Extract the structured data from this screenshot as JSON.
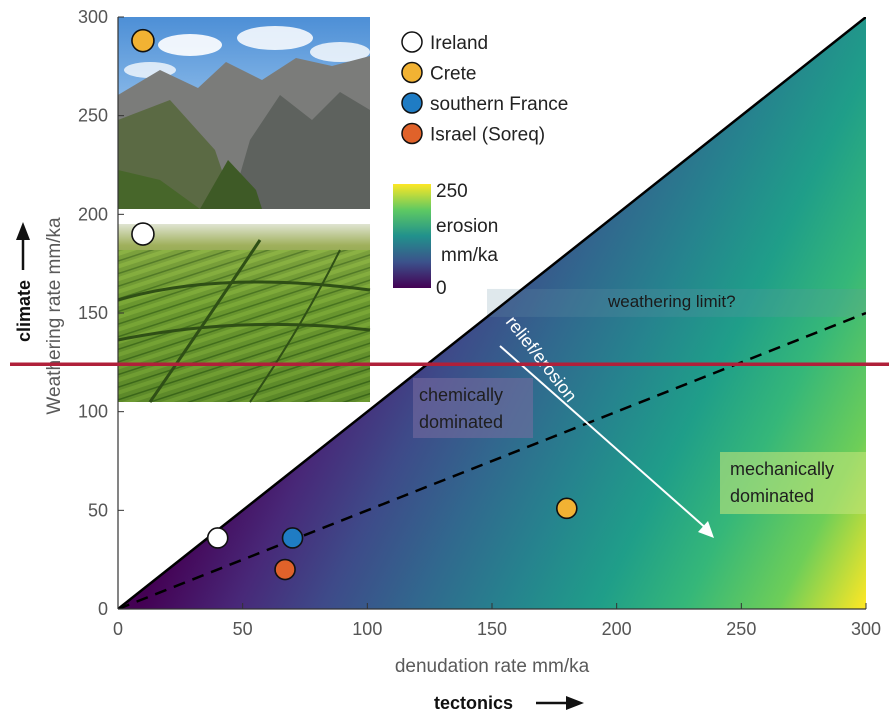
{
  "chart_data": {
    "type": "scatter",
    "xlabel": "denudation rate mm/ka",
    "ylabel": "Weathering rate mm/ka",
    "xlim": [
      0,
      300
    ],
    "ylim": [
      0,
      300
    ],
    "x_ticks": [
      0,
      50,
      100,
      150,
      200,
      250,
      300
    ],
    "y_ticks": [
      0,
      50,
      100,
      150,
      200,
      250,
      300
    ],
    "series": [
      {
        "name": "Ireland",
        "x": [
          40
        ],
        "y": [
          36
        ],
        "color": "#ffffff"
      },
      {
        "name": "Crete",
        "x": [
          180
        ],
        "y": [
          51
        ],
        "color": "#f2b233"
      },
      {
        "name": "southern France",
        "x": [
          70
        ],
        "y": [
          36
        ],
        "color": "#1f7cc4"
      },
      {
        "name": "Israel (Soreq)",
        "x": [
          67
        ],
        "y": [
          20
        ],
        "color": "#e0622a"
      }
    ],
    "legend_position": "top-center",
    "colorbar": {
      "label_line1": "erosion",
      "label_line2": "mm/ka",
      "max_label": "250",
      "min_label": "0",
      "range": [
        0,
        250
      ],
      "colormap": "viridis"
    },
    "reference_lines": {
      "one_to_one": {
        "from": [
          0,
          0
        ],
        "to": [
          300,
          300
        ],
        "style": "solid",
        "color": "#000000"
      },
      "half": {
        "from": [
          0,
          0
        ],
        "to": [
          300,
          150
        ],
        "style": "dashed",
        "color": "#000000"
      },
      "weathering_limit_y": 148,
      "threshold_y": 124,
      "threshold_color": "#b0203a"
    },
    "annotations": {
      "weathering_limit": "weathering limit?",
      "relief_erosion": "relief/erosion",
      "chemically_1": "chemically",
      "chemically_2": "dominated",
      "mechanically_1": "mechanically",
      "mechanically_2": "dominated",
      "climate": "climate",
      "tectonics": "tectonics"
    },
    "photo_markers": [
      {
        "series": "Crete",
        "x": 10,
        "y": 288
      },
      {
        "series": "Ireland",
        "x": 10,
        "y": 190
      }
    ]
  }
}
